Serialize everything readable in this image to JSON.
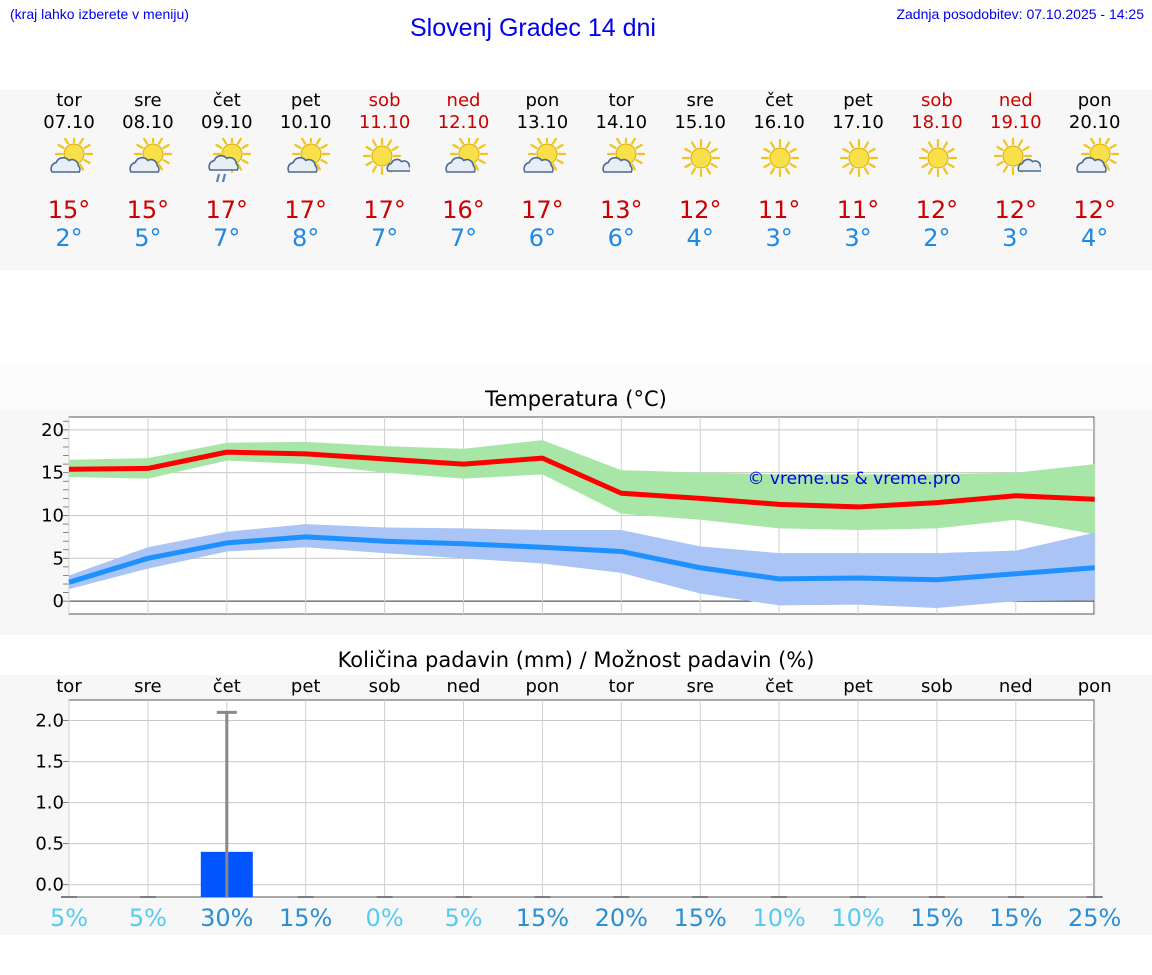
{
  "header": {
    "hint": "(kraj lahko izberete v meniju)",
    "title": "Slovenj Gradec 14 dni",
    "updated": "Zadnja posodobitev: 07.10.2025 - 14:25"
  },
  "days": [
    {
      "name": "tor",
      "date": "07.10",
      "icon": "sun-cloud-icon",
      "max": "15°",
      "min": "2°",
      "weekend": false
    },
    {
      "name": "sre",
      "date": "08.10",
      "icon": "sun-cloud-icon",
      "max": "15°",
      "min": "5°",
      "weekend": false
    },
    {
      "name": "čet",
      "date": "09.10",
      "icon": "sun-cloud-rain-icon",
      "max": "17°",
      "min": "7°",
      "weekend": false
    },
    {
      "name": "pet",
      "date": "10.10",
      "icon": "sun-cloud-icon",
      "max": "17°",
      "min": "8°",
      "weekend": false
    },
    {
      "name": "sob",
      "date": "11.10",
      "icon": "sun-small-cloud-icon",
      "max": "17°",
      "min": "7°",
      "weekend": true
    },
    {
      "name": "ned",
      "date": "12.10",
      "icon": "sun-cloud-icon",
      "max": "16°",
      "min": "7°",
      "weekend": true
    },
    {
      "name": "pon",
      "date": "13.10",
      "icon": "sun-cloud-icon",
      "max": "17°",
      "min": "6°",
      "weekend": false
    },
    {
      "name": "tor",
      "date": "14.10",
      "icon": "sun-cloud-icon",
      "max": "13°",
      "min": "6°",
      "weekend": false
    },
    {
      "name": "sre",
      "date": "15.10",
      "icon": "sun-icon",
      "max": "12°",
      "min": "4°",
      "weekend": false
    },
    {
      "name": "čet",
      "date": "16.10",
      "icon": "sun-icon",
      "max": "11°",
      "min": "3°",
      "weekend": false
    },
    {
      "name": "pet",
      "date": "17.10",
      "icon": "sun-icon",
      "max": "11°",
      "min": "3°",
      "weekend": false
    },
    {
      "name": "sob",
      "date": "18.10",
      "icon": "sun-icon",
      "max": "12°",
      "min": "2°",
      "weekend": true
    },
    {
      "name": "ned",
      "date": "19.10",
      "icon": "sun-small-cloud-icon",
      "max": "12°",
      "min": "3°",
      "weekend": true
    },
    {
      "name": "pon",
      "date": "20.10",
      "icon": "sun-cloud-icon",
      "max": "12°",
      "min": "4°",
      "weekend": false
    }
  ],
  "temp_chart": {
    "title": "Temperatura (°C)",
    "watermark": "© vreme.us & vreme.pro"
  },
  "precip_chart": {
    "title": "Količina padavin (mm) / Možnost padavin (%)",
    "day_labels": [
      "tor",
      "sre",
      "čet",
      "pet",
      "sob",
      "ned",
      "pon",
      "tor",
      "sre",
      "čet",
      "pet",
      "sob",
      "ned",
      "pon"
    ],
    "probabilities": [
      "5%",
      "5%",
      "30%",
      "15%",
      "0%",
      "5%",
      "15%",
      "20%",
      "15%",
      "10%",
      "10%",
      "15%",
      "15%",
      "25%"
    ]
  },
  "colors": {
    "max_line": "#ff0000",
    "max_band": "#a8e6a8",
    "min_line": "#1e90ff",
    "min_band": "#a9c4f5",
    "bar": "#0055ff",
    "prob_low": "#55ccee",
    "prob_mid": "#2a8fd6"
  },
  "chart_data": [
    {
      "type": "line",
      "title": "Temperatura (°C)",
      "x": [
        "07.10",
        "08.10",
        "09.10",
        "10.10",
        "11.10",
        "12.10",
        "13.10",
        "14.10",
        "15.10",
        "16.10",
        "17.10",
        "18.10",
        "19.10",
        "20.10"
      ],
      "ylim": [
        -1.5,
        21.5
      ],
      "yticks": [
        0,
        5,
        10,
        15,
        20
      ],
      "grid": true,
      "series": [
        {
          "values": [
            15.4,
            15.5,
            17.4,
            17.2,
            16.6,
            16.0,
            16.7,
            12.6,
            12.0,
            11.3,
            11.0,
            11.5,
            12.3,
            11.9
          ],
          "band_low": [
            14.5,
            14.3,
            16.4,
            16.0,
            15.0,
            14.3,
            14.8,
            10.2,
            9.5,
            8.5,
            8.3,
            8.5,
            9.5,
            7.8
          ],
          "band_high": [
            16.5,
            16.7,
            18.5,
            18.6,
            18.1,
            17.8,
            18.8,
            15.3,
            15.0,
            14.8,
            14.8,
            14.8,
            15.0,
            16.0
          ]
        },
        {
          "values": [
            2.2,
            5.0,
            6.8,
            7.5,
            7.0,
            6.7,
            6.3,
            5.8,
            3.9,
            2.6,
            2.7,
            2.5,
            3.2,
            3.9
          ],
          "band_low": [
            1.4,
            3.8,
            5.8,
            6.3,
            5.6,
            5.0,
            4.4,
            3.3,
            0.9,
            -0.5,
            -0.4,
            -0.8,
            0.0,
            0.1
          ],
          "band_high": [
            3.0,
            6.3,
            8.1,
            9.0,
            8.6,
            8.5,
            8.3,
            8.3,
            6.4,
            5.6,
            5.6,
            5.6,
            5.9,
            8.0
          ]
        }
      ]
    },
    {
      "type": "bar",
      "title": "Količina padavin (mm) / Možnost padavin (%)",
      "categories": [
        "07.10",
        "08.10",
        "09.10",
        "10.10",
        "11.10",
        "12.10",
        "13.10",
        "14.10",
        "15.10",
        "16.10",
        "17.10",
        "18.10",
        "19.10",
        "20.10"
      ],
      "values": [
        0,
        0,
        0.4,
        0,
        0,
        0,
        0,
        0,
        0,
        0,
        0,
        0,
        0,
        0
      ],
      "error_high": [
        0,
        0,
        2.1,
        0,
        0,
        0,
        0,
        0,
        0,
        0,
        0,
        0,
        0,
        0
      ],
      "probability_percent": [
        5,
        5,
        30,
        15,
        0,
        5,
        15,
        20,
        15,
        10,
        10,
        15,
        15,
        25
      ],
      "ylim": [
        -0.15,
        2.25
      ],
      "yticks": [
        0.0,
        0.5,
        1.0,
        1.5,
        2.0
      ],
      "grid": true
    }
  ]
}
